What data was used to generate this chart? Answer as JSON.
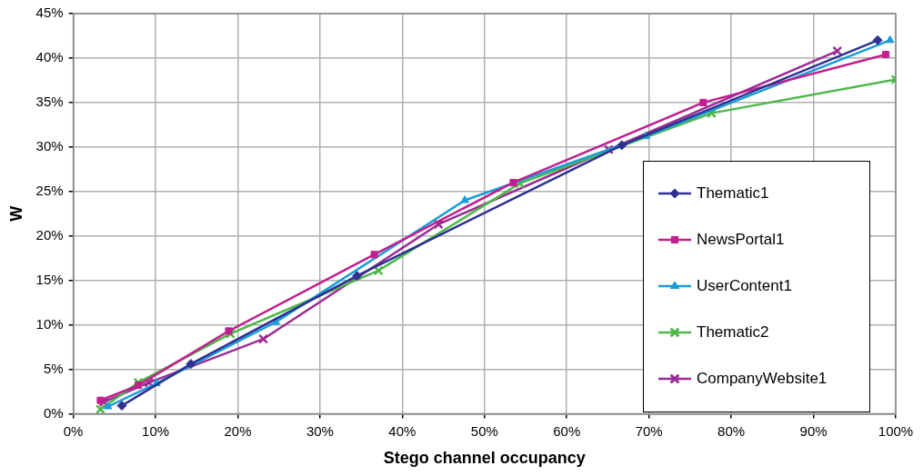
{
  "chart_data": {
    "type": "line",
    "xlabel": "Stego channel occupancy",
    "ylabel": "W",
    "xlim": [
      0,
      100
    ],
    "ylim": [
      0,
      45
    ],
    "xticks": [
      {
        "value": 0,
        "label": "0%"
      },
      {
        "value": 10,
        "label": "10%"
      },
      {
        "value": 20,
        "label": "20%"
      },
      {
        "value": 30,
        "label": "30%"
      },
      {
        "value": 40,
        "label": "40%"
      },
      {
        "value": 50,
        "label": "50%"
      },
      {
        "value": 60,
        "label": "60%"
      },
      {
        "value": 70,
        "label": "70%"
      },
      {
        "value": 80,
        "label": "80%"
      },
      {
        "value": 90,
        "label": "90%"
      },
      {
        "value": 100,
        "label": "100%"
      }
    ],
    "yticks": [
      {
        "value": 0,
        "label": "0%"
      },
      {
        "value": 5,
        "label": "5%"
      },
      {
        "value": 10,
        "label": "10%"
      },
      {
        "value": 15,
        "label": "15%"
      },
      {
        "value": 20,
        "label": "20%"
      },
      {
        "value": 25,
        "label": "25%"
      },
      {
        "value": 30,
        "label": "30%"
      },
      {
        "value": 35,
        "label": "35%"
      },
      {
        "value": 40,
        "label": "40%"
      },
      {
        "value": 45,
        "label": "45%"
      }
    ],
    "grid": true,
    "legend": "right",
    "line_style": "solid",
    "series": [
      {
        "name": "Thematic1",
        "color": "#2e3192",
        "marker": "diamond",
        "x": [
          5.9,
          14.3,
          34.5,
          66.7,
          97.8
        ],
        "values": [
          0.9,
          5.6,
          15.5,
          30.2,
          42.0
        ]
      },
      {
        "name": "NewsPortal1",
        "color": "#c0208f",
        "marker": "square",
        "x": [
          3.3,
          7.9,
          18.9,
          36.6,
          53.5,
          76.6,
          98.8
        ],
        "values": [
          1.5,
          3.2,
          9.3,
          17.9,
          26.0,
          35.0,
          40.4
        ]
      },
      {
        "name": "UserContent1",
        "color": "#1a9ed8",
        "marker": "triangle",
        "x": [
          4.2,
          10.1,
          24.6,
          47.6,
          69.6,
          99.3
        ],
        "values": [
          0.8,
          3.4,
          10.3,
          24.0,
          31.2,
          42.0
        ]
      },
      {
        "name": "Thematic2",
        "color": "#4db848",
        "marker": "cross",
        "x": [
          3.3,
          7.9,
          19.1,
          37.1,
          54.3,
          77.6,
          100
        ],
        "values": [
          0.5,
          3.5,
          9.0,
          16.1,
          25.9,
          33.8,
          37.6
        ]
      },
      {
        "name": "CompanyWebsite1",
        "color": "#9b2a93",
        "marker": "cross",
        "x": [
          3.7,
          9.2,
          23.1,
          44.4,
          65.1,
          92.9
        ],
        "values": [
          1.3,
          3.5,
          8.4,
          21.3,
          29.7,
          40.8
        ]
      }
    ]
  }
}
